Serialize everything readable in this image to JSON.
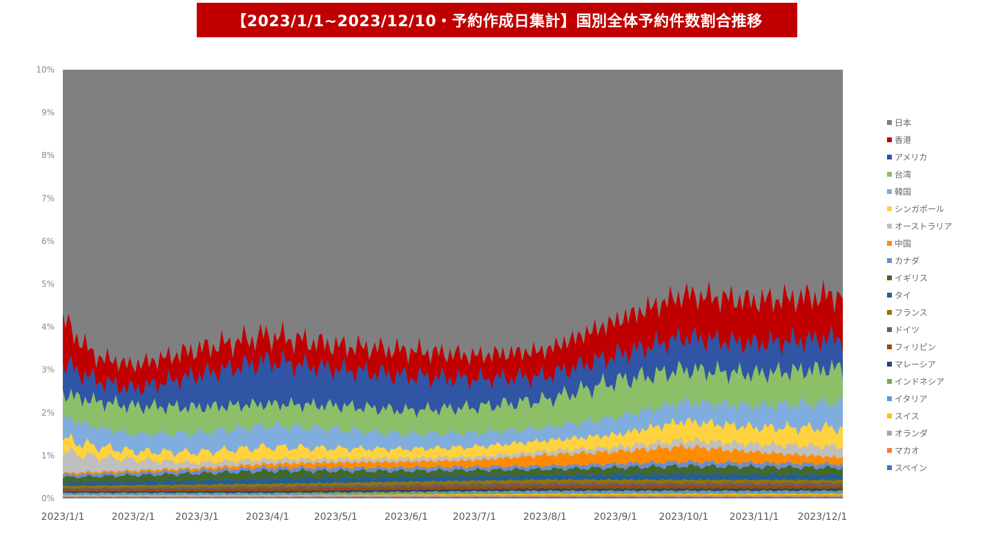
{
  "title": "【2023/1/1~2023/12/10・予約作成日集計】国別全体予約件数割合推移",
  "chart_data": {
    "type": "area",
    "stacked": true,
    "title": "【2023/1/1~2023/12/10・予約作成日集計】国別全体予約件数割合推移",
    "ylim": [
      0,
      10
    ],
    "y_ticks": [
      "0%",
      "1%",
      "2%",
      "3%",
      "4%",
      "5%",
      "6%",
      "7%",
      "8%",
      "9%",
      "10%"
    ],
    "x_range": [
      "2023-01-01",
      "2023-12-10"
    ],
    "x_ticks": [
      "2023/1/1",
      "2023/2/1",
      "2023/3/1",
      "2023/4/1",
      "2023/5/1",
      "2023/6/1",
      "2023/7/1",
      "2023/8/1",
      "2023/9/1",
      "2023/10/1",
      "2023/11/1",
      "2023/12/1"
    ],
    "x_tick_dates": [
      "2023-01-01",
      "2023-02-01",
      "2023-03-01",
      "2023-04-01",
      "2023-05-01",
      "2023-06-01",
      "2023-07-01",
      "2023-08-01",
      "2023-09-01",
      "2023-10-01",
      "2023-11-01",
      "2023-12-01"
    ],
    "grid": false,
    "legend_position": "right",
    "background_series": {
      "name": "日本",
      "color": "#808080"
    },
    "series": [
      {
        "name": "スペイン",
        "color": "#4472c4",
        "points": [
          [
            "2023-01-01",
            0.02
          ],
          [
            "2023-04-01",
            0.02
          ],
          [
            "2023-08-01",
            0.03
          ],
          [
            "2023-12-10",
            0.03
          ]
        ]
      },
      {
        "name": "マカオ",
        "color": "#ed7d31",
        "points": [
          [
            "2023-01-01",
            0.02
          ],
          [
            "2023-04-01",
            0.02
          ],
          [
            "2023-08-01",
            0.02
          ],
          [
            "2023-12-10",
            0.02
          ]
        ]
      },
      {
        "name": "オランダ",
        "color": "#a5a5a5",
        "points": [
          [
            "2023-01-01",
            0.02
          ],
          [
            "2023-04-01",
            0.02
          ],
          [
            "2023-08-01",
            0.03
          ],
          [
            "2023-12-10",
            0.03
          ]
        ]
      },
      {
        "name": "スイス",
        "color": "#ffc000",
        "points": [
          [
            "2023-01-01",
            0.02
          ],
          [
            "2023-04-01",
            0.02
          ],
          [
            "2023-08-01",
            0.03
          ],
          [
            "2023-12-10",
            0.03
          ]
        ]
      },
      {
        "name": "イタリア",
        "color": "#5b9bd5",
        "points": [
          [
            "2023-01-01",
            0.03
          ],
          [
            "2023-04-01",
            0.03
          ],
          [
            "2023-08-01",
            0.04
          ],
          [
            "2023-12-10",
            0.04
          ]
        ]
      },
      {
        "name": "インドネシア",
        "color": "#70ad47",
        "points": [
          [
            "2023-01-01",
            0.02
          ],
          [
            "2023-04-01",
            0.02
          ],
          [
            "2023-08-01",
            0.03
          ],
          [
            "2023-12-10",
            0.03
          ]
        ]
      },
      {
        "name": "マレーシア",
        "color": "#264478",
        "points": [
          [
            "2023-01-01",
            0.03
          ],
          [
            "2023-04-01",
            0.04
          ],
          [
            "2023-08-01",
            0.05
          ],
          [
            "2023-12-10",
            0.05
          ]
        ]
      },
      {
        "name": "フィリピン",
        "color": "#9e480e",
        "points": [
          [
            "2023-01-01",
            0.04
          ],
          [
            "2023-04-01",
            0.06
          ],
          [
            "2023-08-01",
            0.07
          ],
          [
            "2023-12-10",
            0.07
          ]
        ]
      },
      {
        "name": "ドイツ",
        "color": "#636363",
        "points": [
          [
            "2023-01-01",
            0.04
          ],
          [
            "2023-04-01",
            0.05
          ],
          [
            "2023-08-01",
            0.06
          ],
          [
            "2023-12-10",
            0.06
          ]
        ]
      },
      {
        "name": "フランス",
        "color": "#997300",
        "points": [
          [
            "2023-01-01",
            0.05
          ],
          [
            "2023-04-01",
            0.06
          ],
          [
            "2023-08-01",
            0.08
          ],
          [
            "2023-12-10",
            0.07
          ]
        ]
      },
      {
        "name": "タイ",
        "color": "#255e91",
        "points": [
          [
            "2023-01-01",
            0.08
          ],
          [
            "2023-03-01",
            0.1
          ],
          [
            "2023-04-01",
            0.12
          ],
          [
            "2023-08-01",
            0.1
          ],
          [
            "2023-10-01",
            0.14
          ],
          [
            "2023-12-10",
            0.12
          ]
        ]
      },
      {
        "name": "イギリス",
        "color": "#43682b",
        "points": [
          [
            "2023-01-01",
            0.12
          ],
          [
            "2023-03-01",
            0.16
          ],
          [
            "2023-04-01",
            0.18
          ],
          [
            "2023-06-01",
            0.14
          ],
          [
            "2023-08-01",
            0.14
          ],
          [
            "2023-10-01",
            0.18
          ],
          [
            "2023-12-10",
            0.16
          ]
        ]
      },
      {
        "name": "カナダ",
        "color": "#698ed0",
        "points": [
          [
            "2023-01-01",
            0.06
          ],
          [
            "2023-04-01",
            0.08
          ],
          [
            "2023-08-01",
            0.08
          ],
          [
            "2023-10-01",
            0.1
          ],
          [
            "2023-12-10",
            0.09
          ]
        ]
      },
      {
        "name": "中国",
        "color": "#ff8c00",
        "points": [
          [
            "2023-01-01",
            0.04
          ],
          [
            "2023-03-01",
            0.05
          ],
          [
            "2023-05-01",
            0.12
          ],
          [
            "2023-07-01",
            0.15
          ],
          [
            "2023-08-01",
            0.25
          ],
          [
            "2023-09-01",
            0.28
          ],
          [
            "2023-10-01",
            0.35
          ],
          [
            "2023-11-01",
            0.25
          ],
          [
            "2023-12-10",
            0.15
          ]
        ]
      },
      {
        "name": "オーストラリア",
        "color": "#bfbfbf",
        "points": [
          [
            "2023-01-01",
            0.5
          ],
          [
            "2023-01-15",
            0.35
          ],
          [
            "2023-02-01",
            0.25
          ],
          [
            "2023-03-01",
            0.12
          ],
          [
            "2023-05-01",
            0.08
          ],
          [
            "2023-07-01",
            0.08
          ],
          [
            "2023-09-01",
            0.1
          ],
          [
            "2023-10-01",
            0.15
          ],
          [
            "2023-11-01",
            0.18
          ],
          [
            "2023-12-10",
            0.25
          ]
        ]
      },
      {
        "name": "シンガポール",
        "color": "#ffd23f",
        "points": [
          [
            "2023-01-01",
            0.3
          ],
          [
            "2023-02-01",
            0.2
          ],
          [
            "2023-03-01",
            0.25
          ],
          [
            "2023-04-01",
            0.3
          ],
          [
            "2023-05-01",
            0.25
          ],
          [
            "2023-06-01",
            0.22
          ],
          [
            "2023-08-01",
            0.25
          ],
          [
            "2023-09-01",
            0.3
          ],
          [
            "2023-10-01",
            0.45
          ],
          [
            "2023-11-01",
            0.4
          ],
          [
            "2023-12-10",
            0.45
          ]
        ]
      },
      {
        "name": "韓国",
        "color": "#7faede",
        "points": [
          [
            "2023-01-01",
            0.5
          ],
          [
            "2023-02-01",
            0.4
          ],
          [
            "2023-03-01",
            0.45
          ],
          [
            "2023-04-01",
            0.5
          ],
          [
            "2023-05-01",
            0.45
          ],
          [
            "2023-06-01",
            0.35
          ],
          [
            "2023-08-01",
            0.3
          ],
          [
            "2023-09-01",
            0.4
          ],
          [
            "2023-10-01",
            0.45
          ],
          [
            "2023-11-01",
            0.5
          ],
          [
            "2023-12-10",
            0.6
          ]
        ]
      },
      {
        "name": "台湾",
        "color": "#8dbf68",
        "points": [
          [
            "2023-01-01",
            0.55
          ],
          [
            "2023-02-01",
            0.65
          ],
          [
            "2023-03-01",
            0.6
          ],
          [
            "2023-04-01",
            0.5
          ],
          [
            "2023-05-01",
            0.55
          ],
          [
            "2023-06-01",
            0.55
          ],
          [
            "2023-07-01",
            0.6
          ],
          [
            "2023-08-01",
            0.65
          ],
          [
            "2023-09-01",
            0.85
          ],
          [
            "2023-10-01",
            0.75
          ],
          [
            "2023-11-01",
            0.75
          ],
          [
            "2023-12-10",
            0.8
          ]
        ]
      },
      {
        "name": "アメリカ",
        "color": "#2f55a4",
        "points": [
          [
            "2023-01-01",
            0.7
          ],
          [
            "2023-01-15",
            0.5
          ],
          [
            "2023-02-01",
            0.4
          ],
          [
            "2023-03-01",
            0.75
          ],
          [
            "2023-04-01",
            1.0
          ],
          [
            "2023-05-01",
            0.85
          ],
          [
            "2023-06-01",
            0.8
          ],
          [
            "2023-07-01",
            0.65
          ],
          [
            "2023-08-01",
            0.55
          ],
          [
            "2023-09-01",
            0.6
          ],
          [
            "2023-10-01",
            0.75
          ],
          [
            "2023-11-01",
            0.7
          ],
          [
            "2023-12-10",
            0.7
          ]
        ]
      },
      {
        "name": "香港",
        "color": "#c00000",
        "points": [
          [
            "2023-01-01",
            1.0
          ],
          [
            "2023-01-15",
            0.55
          ],
          [
            "2023-02-01",
            0.55
          ],
          [
            "2023-03-01",
            0.6
          ],
          [
            "2023-04-01",
            0.6
          ],
          [
            "2023-05-01",
            0.55
          ],
          [
            "2023-06-01",
            0.6
          ],
          [
            "2023-07-01",
            0.55
          ],
          [
            "2023-08-01",
            0.6
          ],
          [
            "2023-09-01",
            0.8
          ],
          [
            "2023-10-01",
            1.0
          ],
          [
            "2023-11-01",
            1.0
          ],
          [
            "2023-12-10",
            1.0
          ]
        ]
      }
    ],
    "legend": [
      "日本",
      "香港",
      "アメリカ",
      "台湾",
      "韓国",
      "シンガポール",
      "オーストラリア",
      "中国",
      "カナダ",
      "イギリス",
      "タイ",
      "フランス",
      "ドイツ",
      "フィリピン",
      "マレーシア",
      "インドネシア",
      "イタリア",
      "スイス",
      "オランダ",
      "マカオ",
      "スペイン"
    ]
  }
}
